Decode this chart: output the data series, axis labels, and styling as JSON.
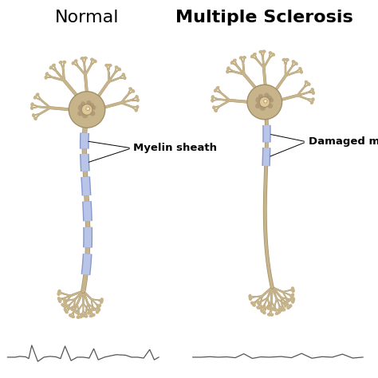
{
  "background_color": "#ffffff",
  "title_normal": "Normal",
  "title_ms": "Multiple Sclerosis",
  "title_fontsize": 16,
  "label_myelin": "Myelin sheath",
  "label_damaged": "Damaged myelin",
  "label_fontsize": 9.5,
  "body_color": "#c8b48a",
  "body_edge": "#a0906a",
  "body_dark": "#9a8060",
  "myelin_color": "#b8c4e8",
  "myelin_edge": "#8898c8",
  "axon_color": "#c8b48a",
  "axon_edge": "#a0906a",
  "ecg_color": "#555555",
  "nucleus_color": "#e0c898",
  "nucleus_inner": "#f0e0b0",
  "spot_color": "#a89070"
}
